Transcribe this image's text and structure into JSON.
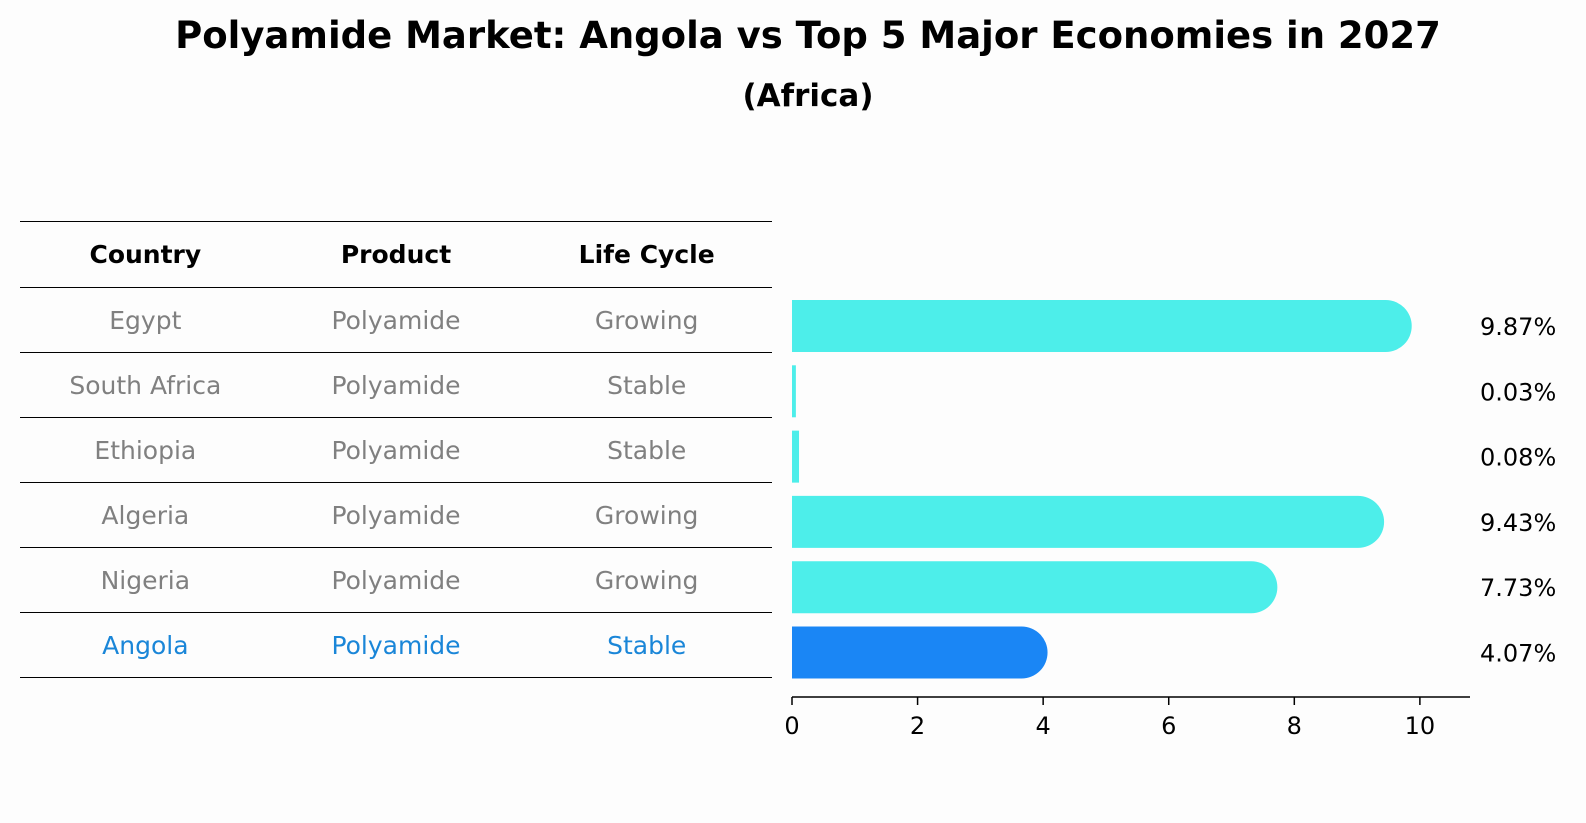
{
  "header": {
    "title": "Polyamide Market: Angola vs Top 5 Major Economies in 2027",
    "subtitle": "(Africa)"
  },
  "table": {
    "columns": [
      "Country",
      "Product",
      "Life Cycle"
    ],
    "rows": [
      {
        "country": "Egypt",
        "product": "Polyamide",
        "life_cycle": "Growing"
      },
      {
        "country": "South Africa",
        "product": "Polyamide",
        "life_cycle": "Stable"
      },
      {
        "country": "Ethiopia",
        "product": "Polyamide",
        "life_cycle": "Stable"
      },
      {
        "country": "Algeria",
        "product": "Polyamide",
        "life_cycle": "Growing"
      },
      {
        "country": "Nigeria",
        "product": "Polyamide",
        "life_cycle": "Growing"
      },
      {
        "country": "Angola",
        "product": "Polyamide",
        "life_cycle": "Stable"
      }
    ],
    "highlight_color": "#1a86d8"
  },
  "chart_data": {
    "type": "bar",
    "orientation": "horizontal",
    "title": "Polyamide Market: Angola vs Top 5 Major Economies in 2027",
    "subtitle": "(Africa)",
    "categories": [
      "Egypt",
      "South Africa",
      "Ethiopia",
      "Algeria",
      "Nigeria",
      "Angola"
    ],
    "values": [
      9.87,
      0.03,
      0.08,
      9.43,
      7.73,
      4.07
    ],
    "value_labels": [
      "9.87%",
      "0.03%",
      "0.08%",
      "9.43%",
      "7.73%",
      "4.07%"
    ],
    "xlim": [
      0,
      10.4
    ],
    "xticks": [
      0,
      2,
      4,
      6,
      8,
      10
    ],
    "xtick_labels": [
      "0",
      "2",
      "4",
      "6",
      "8",
      "10"
    ],
    "grid": false,
    "colors": {
      "default": "#4deeea",
      "highlight": "#1a86f5"
    },
    "highlight_category": "Angola"
  }
}
